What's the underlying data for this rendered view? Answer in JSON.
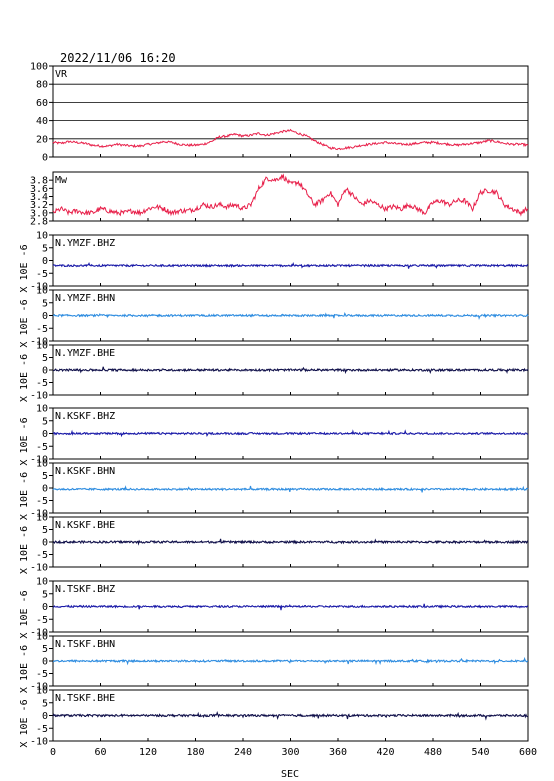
{
  "header": {
    "datetime": "2022/11/06  16:20"
  },
  "colors": {
    "vr_line": "#e8204a",
    "mw_line": "#e8204a",
    "bhz": "#1a1aa8",
    "bhn": "#2f8de0",
    "bhe": "#10104a"
  },
  "chart_data": [
    {
      "type": "line",
      "label": "VR",
      "ylim": [
        0,
        100
      ],
      "yticks": [
        "0",
        "20",
        "40",
        "60",
        "80",
        "100"
      ],
      "grid": true,
      "x": [
        0,
        10,
        20,
        30,
        40,
        50,
        60,
        70,
        80,
        90,
        100,
        110,
        120,
        130,
        140,
        150,
        160,
        170,
        180,
        190,
        200,
        210,
        220,
        230,
        240,
        250,
        260,
        270,
        280,
        290,
        300,
        310,
        320,
        330,
        340,
        350,
        360,
        370,
        380,
        390,
        400,
        410,
        420,
        430,
        440,
        450,
        460,
        470,
        480,
        490,
        500,
        510,
        520,
        530,
        540,
        550,
        560,
        570,
        580,
        590,
        600
      ],
      "values": [
        16,
        15,
        17,
        16,
        15,
        13,
        12,
        12,
        14,
        13,
        12,
        12,
        14,
        15,
        17,
        16,
        14,
        13,
        13,
        14,
        17,
        22,
        23,
        25,
        23,
        24,
        26,
        24,
        26,
        28,
        29,
        26,
        23,
        18,
        14,
        10,
        9,
        10,
        11,
        13,
        14,
        15,
        16,
        15,
        14,
        14,
        15,
        16,
        16,
        15,
        14,
        13,
        14,
        15,
        16,
        18,
        17,
        15,
        14,
        14,
        13
      ]
    },
    {
      "type": "line",
      "label": "Mw",
      "ylim": [
        2.8,
        4.0
      ],
      "yticks": [
        "2.8",
        "3.0",
        "3.2",
        "3.4",
        "3.6",
        "3.8"
      ],
      "x": [
        0,
        10,
        20,
        30,
        40,
        50,
        60,
        70,
        80,
        90,
        100,
        110,
        120,
        130,
        140,
        150,
        160,
        170,
        180,
        190,
        200,
        210,
        220,
        230,
        240,
        250,
        260,
        270,
        280,
        290,
        300,
        310,
        320,
        330,
        340,
        350,
        360,
        370,
        380,
        390,
        400,
        410,
        420,
        430,
        440,
        450,
        460,
        470,
        480,
        490,
        500,
        510,
        520,
        530,
        540,
        550,
        560,
        570,
        580,
        590,
        600
      ],
      "values": [
        3.0,
        3.1,
        3.0,
        3.05,
        3.0,
        3.0,
        3.1,
        3.05,
        3.0,
        3.0,
        3.05,
        3.0,
        3.1,
        3.15,
        3.1,
        3.0,
        3.05,
        3.05,
        3.1,
        3.2,
        3.15,
        3.2,
        3.15,
        3.2,
        3.1,
        3.2,
        3.6,
        3.85,
        3.8,
        3.9,
        3.7,
        3.75,
        3.5,
        3.2,
        3.3,
        3.5,
        3.2,
        3.6,
        3.4,
        3.2,
        3.3,
        3.2,
        3.1,
        3.15,
        3.1,
        3.2,
        3.1,
        3.0,
        3.25,
        3.3,
        3.2,
        3.3,
        3.3,
        3.1,
        3.5,
        3.55,
        3.5,
        3.2,
        3.1,
        3.0,
        3.1
      ]
    },
    {
      "type": "line",
      "label": "N.YMZF.BHZ",
      "ylim": [
        -10,
        10
      ],
      "yticks": [
        "-10",
        "-5",
        "0",
        "5",
        "10"
      ],
      "offset": -2,
      "amplitude": 0.35,
      "color_key": "bhz"
    },
    {
      "type": "line",
      "label": "N.YMZF.BHN",
      "ylim": [
        -10,
        10
      ],
      "yticks": [
        "-10",
        "-5",
        "0",
        "5",
        "10"
      ],
      "offset": 0,
      "amplitude": 0.35,
      "color_key": "bhn"
    },
    {
      "type": "line",
      "label": "N.YMZF.BHE",
      "ylim": [
        -10,
        10
      ],
      "yticks": [
        "-10",
        "-5",
        "0",
        "5",
        "10"
      ],
      "offset": 0,
      "amplitude": 0.4,
      "color_key": "bhe"
    },
    {
      "type": "line",
      "label": "N.KSKF.BHZ",
      "ylim": [
        -10,
        10
      ],
      "yticks": [
        "-10",
        "-5",
        "0",
        "5",
        "10"
      ],
      "offset": 0,
      "amplitude": 0.35,
      "color_key": "bhz"
    },
    {
      "type": "line",
      "label": "N.KSKF.BHN",
      "ylim": [
        -10,
        10
      ],
      "yticks": [
        "-10",
        "-5",
        "0",
        "5",
        "10"
      ],
      "offset": -0.5,
      "amplitude": 0.35,
      "color_key": "bhn"
    },
    {
      "type": "line",
      "label": "N.KSKF.BHE",
      "ylim": [
        -10,
        10
      ],
      "yticks": [
        "-10",
        "-5",
        "0",
        "5",
        "10"
      ],
      "offset": 0,
      "amplitude": 0.4,
      "color_key": "bhe"
    },
    {
      "type": "line",
      "label": "N.TSKF.BHZ",
      "ylim": [
        -10,
        10
      ],
      "yticks": [
        "-10",
        "-5",
        "0",
        "5",
        "10"
      ],
      "offset": 0,
      "amplitude": 0.35,
      "color_key": "bhz"
    },
    {
      "type": "line",
      "label": "N.TSKF.BHN",
      "ylim": [
        -10,
        10
      ],
      "yticks": [
        "-10",
        "-5",
        "0",
        "5",
        "10"
      ],
      "offset": 0,
      "amplitude": 0.35,
      "color_key": "bhn"
    },
    {
      "type": "line",
      "label": "N.TSKF.BHE",
      "ylim": [
        -10,
        10
      ],
      "yticks": [
        "-10",
        "-5",
        "0",
        "5",
        "10"
      ],
      "offset": 0,
      "amplitude": 0.4,
      "color_key": "bhe"
    }
  ],
  "xaxis": {
    "label": "SEC",
    "range": [
      0,
      600
    ],
    "ticks": [
      "0",
      "60",
      "120",
      "180",
      "240",
      "300",
      "360",
      "420",
      "480",
      "540",
      "600"
    ]
  },
  "seismo_ylabel": "X 10E -6"
}
